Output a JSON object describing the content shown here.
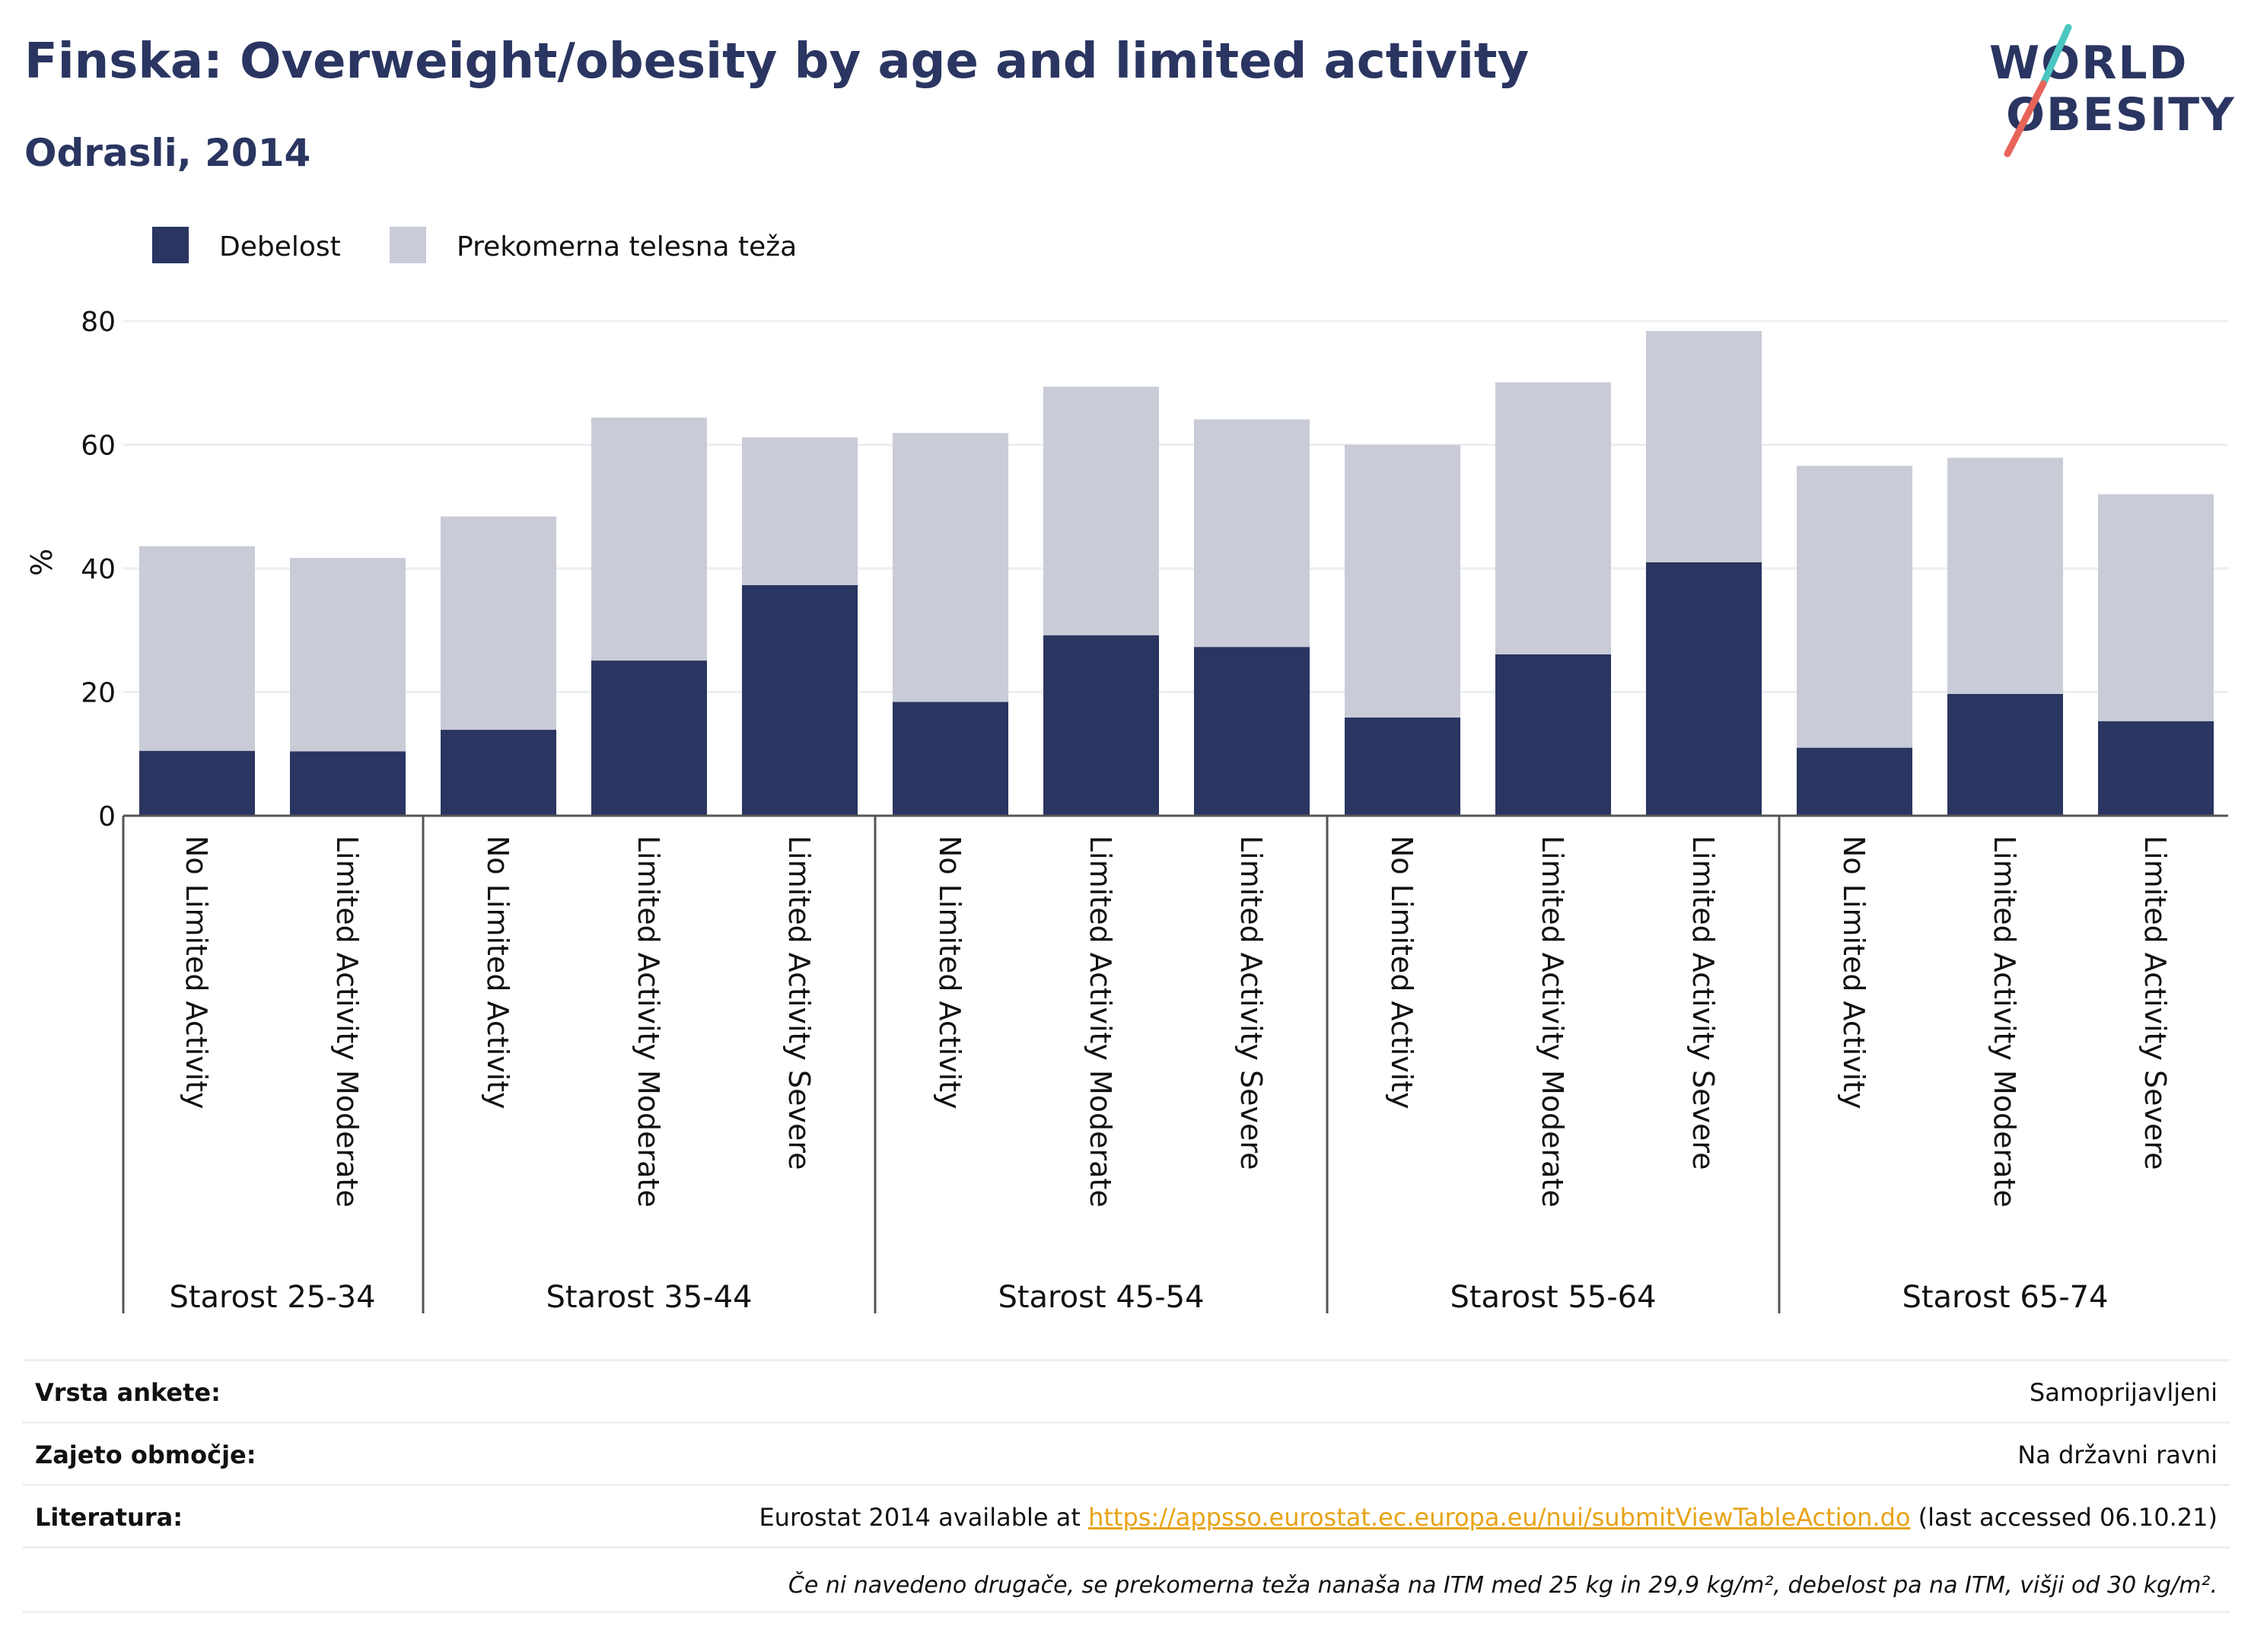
{
  "header": {
    "title": "Finska: Overweight/obesity by age and limited activity",
    "subtitle": "Odrasli, 2014"
  },
  "logo": {
    "line1": "WORLD",
    "line2": "OBESITY",
    "accent_colors": [
      "#4bc6c0",
      "#e8645a"
    ]
  },
  "colors": {
    "obesity": "#2a3561",
    "overweight": "#c9cbd7",
    "text": "#2a3561"
  },
  "chart_data": {
    "type": "bar",
    "stacked": true,
    "ylabel": "%",
    "ylim": [
      0,
      80
    ],
    "yticks": [
      0,
      20,
      40,
      60,
      80
    ],
    "grid": true,
    "legend_position": "top-left",
    "groups": [
      {
        "label": "Starost 25-34",
        "categories": [
          "No Limited Activity",
          "Limited Activity Moderate"
        ]
      },
      {
        "label": "Starost 35-44",
        "categories": [
          "No Limited Activity",
          "Limited Activity Moderate",
          "Limited Activity Severe"
        ]
      },
      {
        "label": "Starost 45-54",
        "categories": [
          "No Limited Activity",
          "Limited Activity Moderate",
          "Limited Activity Severe"
        ]
      },
      {
        "label": "Starost 55-64",
        "categories": [
          "No Limited Activity",
          "Limited Activity Moderate",
          "Limited Activity Severe"
        ]
      },
      {
        "label": "Starost 65-74",
        "categories": [
          "No Limited Activity",
          "Limited Activity Moderate",
          "Limited Activity Severe"
        ]
      }
    ],
    "series": [
      {
        "name": "Debelost",
        "color": "#2a3561",
        "values": [
          10.5,
          10.4,
          13.9,
          25.1,
          37.3,
          18.4,
          29.2,
          27.3,
          15.9,
          26.1,
          41.0,
          11.0,
          19.7,
          15.3
        ]
      },
      {
        "name": "Prekomerna telesna teža",
        "color": "#c9cbd7",
        "values": [
          33.1,
          31.3,
          34.5,
          39.3,
          23.9,
          43.5,
          40.2,
          36.8,
          44.1,
          44.0,
          37.4,
          45.6,
          38.2,
          36.7
        ]
      }
    ]
  },
  "meta": {
    "survey_type": {
      "label": "Vrsta ankete:",
      "value": "Samoprijavljeni"
    },
    "coverage": {
      "label": "Zajeto območje:",
      "value": "Na državni ravni"
    },
    "reference": {
      "label": "Literatura:",
      "prefix": "Eurostat 2014 available at ",
      "link": "https://appsso.eurostat.ec.europa.eu/nui/submitViewTableAction.do",
      "suffix": " (last accessed 06.10.21)"
    },
    "note": "Če ni navedeno drugače, se prekomerna teža nanaša na ITM med 25 kg in 29,9 kg/m², debelost pa na ITM, višji od 30 kg/m²."
  }
}
